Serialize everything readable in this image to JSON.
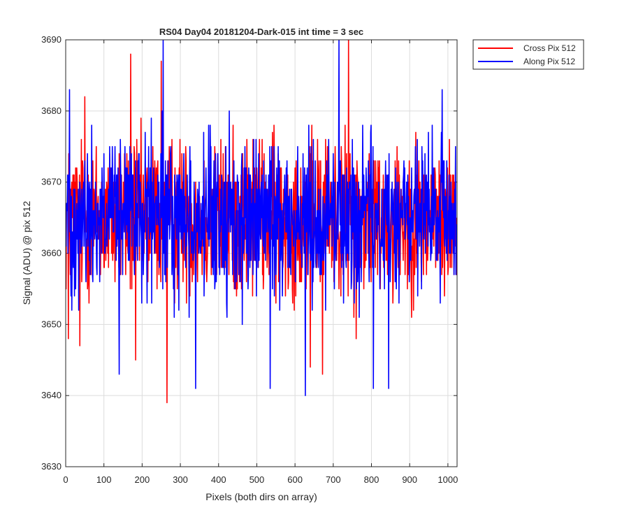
{
  "chart_data": {
    "type": "line",
    "title": "RS04 Day04 20181204-Dark-015 int time = 3 sec",
    "xlabel": "Pixels (both dirs on array)",
    "ylabel": "Signal (ADU) @ pix 512",
    "xlim": [
      0,
      1024
    ],
    "ylim": [
      3630,
      3690
    ],
    "xticks": [
      0,
      100,
      200,
      300,
      400,
      500,
      600,
      700,
      800,
      900,
      1000
    ],
    "yticks": [
      3630,
      3640,
      3650,
      3660,
      3670,
      3680,
      3690
    ],
    "grid": true,
    "legend_position": "outside-top-right",
    "series": [
      {
        "name": "Cross Pix 512",
        "color": "#ff0000",
        "summary": {
          "n_points": 1024,
          "mean": 3665,
          "min": 3639,
          "max": 3690
        },
        "key_points": [
          {
            "x": 0,
            "y": 3660
          },
          {
            "x": 7,
            "y": 3648
          },
          {
            "x": 37,
            "y": 3647
          },
          {
            "x": 50,
            "y": 3682
          },
          {
            "x": 170,
            "y": 3688
          },
          {
            "x": 183,
            "y": 3645
          },
          {
            "x": 250,
            "y": 3687
          },
          {
            "x": 265,
            "y": 3639
          },
          {
            "x": 640,
            "y": 3644
          },
          {
            "x": 672,
            "y": 3643
          },
          {
            "x": 740,
            "y": 3690
          },
          {
            "x": 760,
            "y": 3648
          },
          {
            "x": 1023,
            "y": 3665
          }
        ]
      },
      {
        "name": "Along Pix 512",
        "color": "#0000ff",
        "summary": {
          "n_points": 1024,
          "mean": 3665,
          "min": 3640,
          "max": 3690
        },
        "key_points": [
          {
            "x": 0,
            "y": 3665
          },
          {
            "x": 10,
            "y": 3683
          },
          {
            "x": 140,
            "y": 3643
          },
          {
            "x": 255,
            "y": 3690
          },
          {
            "x": 340,
            "y": 3641
          },
          {
            "x": 535,
            "y": 3641
          },
          {
            "x": 627,
            "y": 3640
          },
          {
            "x": 715,
            "y": 3690
          },
          {
            "x": 805,
            "y": 3641
          },
          {
            "x": 845,
            "y": 3641
          },
          {
            "x": 985,
            "y": 3683
          },
          {
            "x": 1023,
            "y": 3664
          }
        ]
      }
    ]
  }
}
